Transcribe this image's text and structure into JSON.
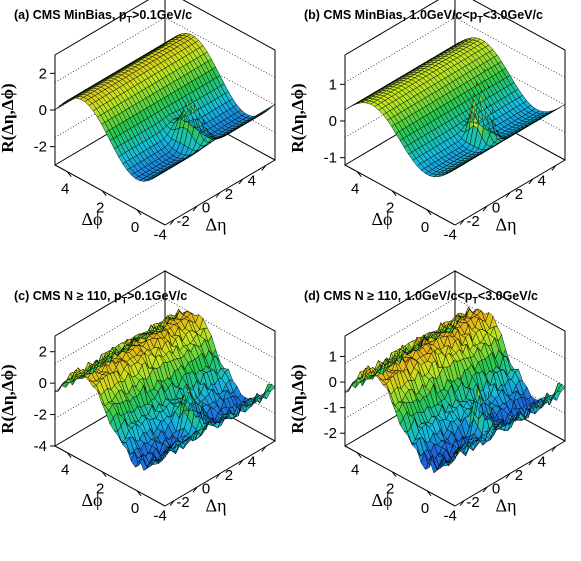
{
  "chart_data": [
    {
      "type": "surface",
      "title_main": "(a) CMS MinBias, p",
      "title_sub": "T",
      "title_rest": ">0.1GeV/c",
      "zlabel": "R(Δη,Δϕ)",
      "xlabel": "Δη",
      "ylabel": "Δϕ",
      "xticks": [
        "-4",
        "-2",
        "0",
        "2",
        "4"
      ],
      "yticks": [
        "0",
        "2",
        "4"
      ],
      "zticks": [
        "-2",
        "0",
        "2"
      ],
      "xlim": [
        -4.8,
        4.8
      ],
      "ylim": [
        -1.6,
        4.7
      ],
      "zlim": [
        -3,
        3
      ],
      "ridge_amp": 3.0,
      "peak_height": 2.6,
      "peak_width": 0.5,
      "noise": 0.0
    },
    {
      "type": "surface",
      "title_main": "(b) CMS MinBias, 1.0GeV/c<p",
      "title_sub": "T",
      "title_rest": "<3.0GeV/c",
      "zlabel": "R(Δη,Δϕ)",
      "xlabel": "Δη",
      "ylabel": "Δϕ",
      "xticks": [
        "-4",
        "-2",
        "0",
        "2",
        "4"
      ],
      "yticks": [
        "0",
        "2",
        "4"
      ],
      "zticks": [
        "-1",
        "0",
        "1"
      ],
      "xlim": [
        -4.8,
        4.8
      ],
      "ylim": [
        -1.6,
        4.7
      ],
      "zlim": [
        -1.2,
        1.8
      ],
      "ridge_amp": 1.2,
      "peak_height": 2.4,
      "peak_width": 0.35,
      "noise": 0.0
    },
    {
      "type": "surface",
      "title_main": "(c) CMS N ≥ 110, p",
      "title_sub": "T",
      "title_rest": ">0.1GeV/c",
      "zlabel": "R(Δη,Δϕ)",
      "xlabel": "Δη",
      "ylabel": "Δϕ",
      "xticks": [
        "-4",
        "-2",
        "0",
        "2",
        "4"
      ],
      "yticks": [
        "0",
        "2",
        "4"
      ],
      "zticks": [
        "-4",
        "-2",
        "0",
        "2"
      ],
      "xlim": [
        -4.8,
        4.8
      ],
      "ylim": [
        -1.6,
        4.7
      ],
      "zlim": [
        -4,
        3
      ],
      "ridge_amp": 4.0,
      "peak_height": 3.2,
      "peak_width": 0.45,
      "noise": 0.35
    },
    {
      "type": "surface",
      "title_main": "(d) CMS N ≥ 110, 1.0GeV/c<p",
      "title_sub": "T",
      "title_rest": "<3.0GeV/c",
      "zlabel": "R(Δη,Δϕ)",
      "xlabel": "Δη",
      "ylabel": "Δϕ",
      "xticks": [
        "-4",
        "-2",
        "0",
        "2",
        "4"
      ],
      "yticks": [
        "0",
        "2",
        "4"
      ],
      "zticks": [
        "-2",
        "-1",
        "0",
        "1"
      ],
      "xlim": [
        -4.8,
        4.8
      ],
      "ylim": [
        -1.6,
        4.7
      ],
      "zlim": [
        -2.5,
        1.8
      ],
      "ridge_amp": 2.6,
      "peak_height": 2.2,
      "peak_width": 0.35,
      "noise": 0.25
    }
  ]
}
